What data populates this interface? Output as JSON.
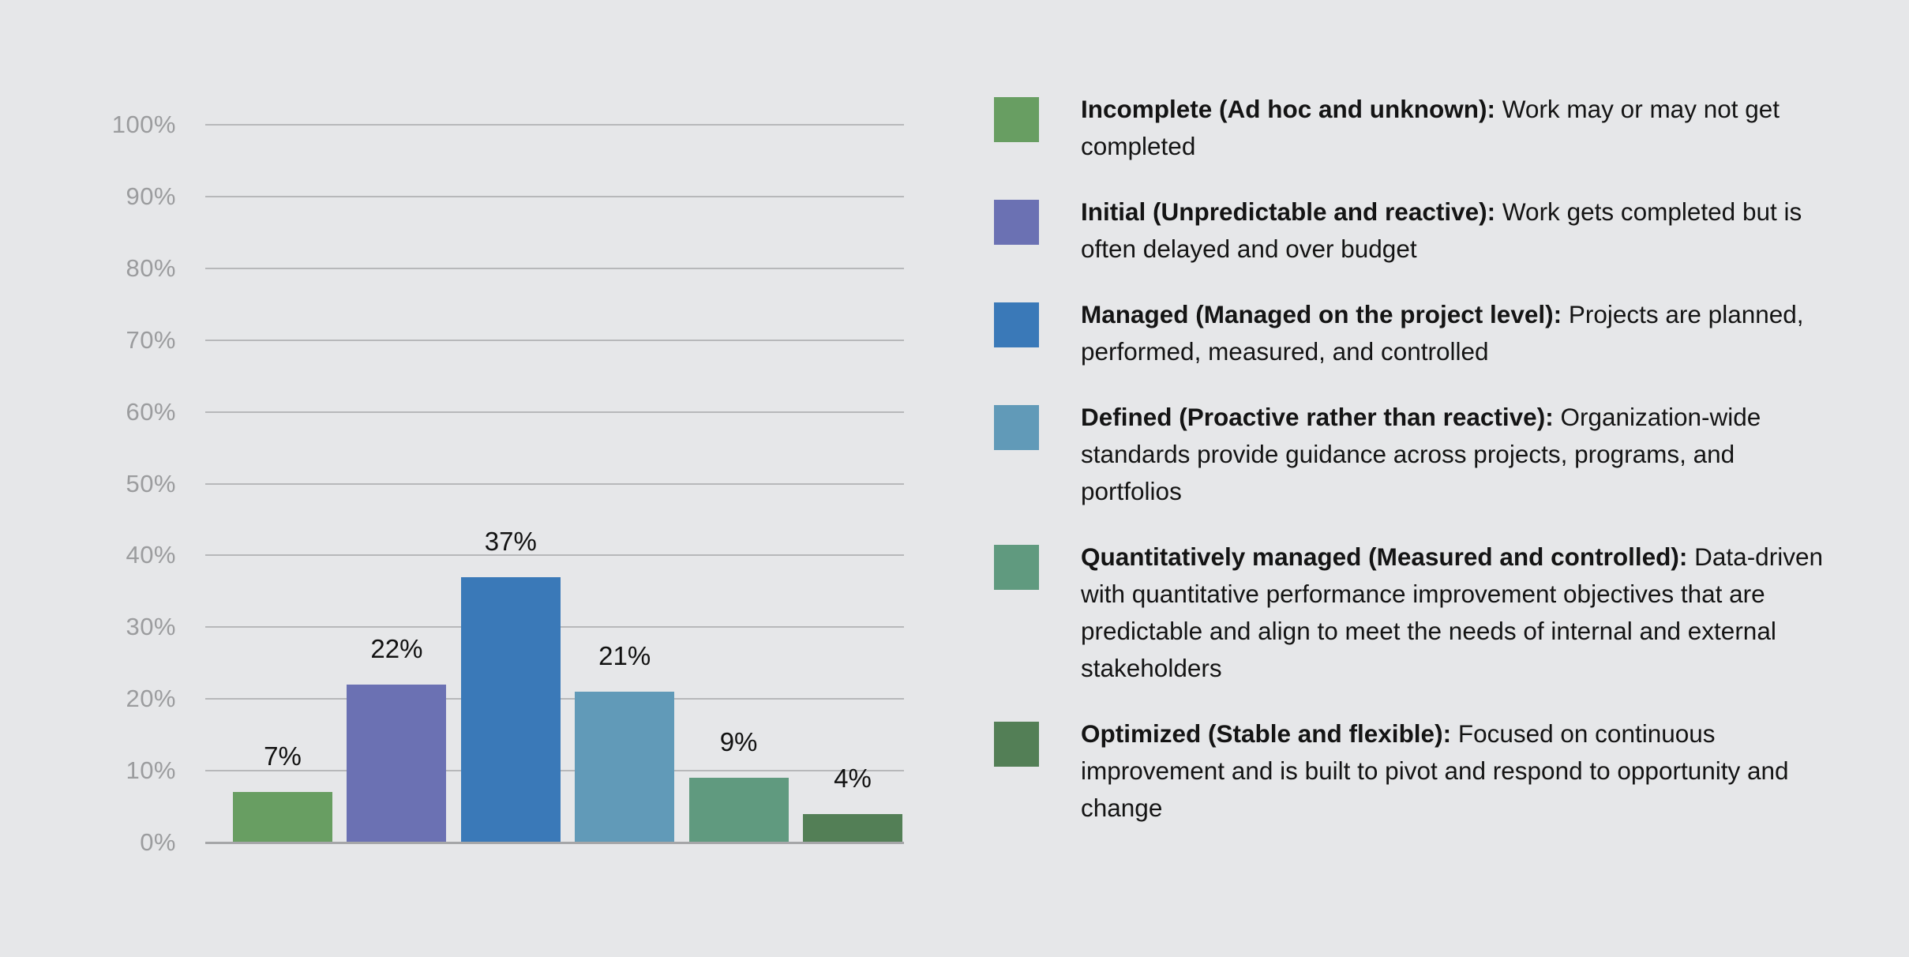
{
  "colors": {
    "background": "#e6e7e9",
    "gridline": "#b7b8ba",
    "baseline": "#a5a6a8",
    "tick_label": "#9b9c9e",
    "value_label": "#111111",
    "legend_text": "#141414"
  },
  "chart_data": {
    "type": "bar",
    "categories": [
      "Incomplete",
      "Initial",
      "Managed",
      "Defined",
      "Quantitatively managed",
      "Optimized"
    ],
    "values": [
      7,
      22,
      37,
      21,
      9,
      4
    ],
    "value_labels": [
      "7%",
      "22%",
      "37%",
      "21%",
      "9%",
      "4%"
    ],
    "bar_colors": [
      "#689e62",
      "#6b71b3",
      "#3a79b8",
      "#619ab8",
      "#609a7f",
      "#537f56"
    ],
    "title": "",
    "xlabel": "",
    "ylabel": "",
    "ylim": [
      0,
      100
    ],
    "ytick_step": 10,
    "yticks": [
      "0%",
      "10%",
      "20%",
      "30%",
      "40%",
      "50%",
      "60%",
      "70%",
      "80%",
      "90%",
      "100%"
    ],
    "grid": true,
    "x_axis_labels_shown": false,
    "legend_position": "right",
    "legend": [
      {
        "title": "Incomplete (Ad hoc and unknown):",
        "description": "Work may or may not get completed",
        "color": "#689e62"
      },
      {
        "title": "Initial (Unpredictable and reactive):",
        "description": "Work gets completed but is often delayed and over budget",
        "color": "#6b71b3"
      },
      {
        "title": "Managed (Managed on the project level):",
        "description": "Projects are planned, performed, measured, and controlled",
        "color": "#3a79b8"
      },
      {
        "title": "Defined (Proactive rather than reactive):",
        "description": "Organization-wide standards provide guidance across projects, programs, and portfolios",
        "color": "#619ab8"
      },
      {
        "title": "Quantitatively managed (Measured and controlled):",
        "description": "Data-driven with quantitative performance improvement objectives that are predictable and align to meet the needs of internal and external stakeholders",
        "color": "#609a7f"
      },
      {
        "title": "Optimized (Stable and flexible):",
        "description": "Focused on continuous improvement and is built to pivot and respond to opportunity and change",
        "color": "#537f56"
      }
    ]
  }
}
